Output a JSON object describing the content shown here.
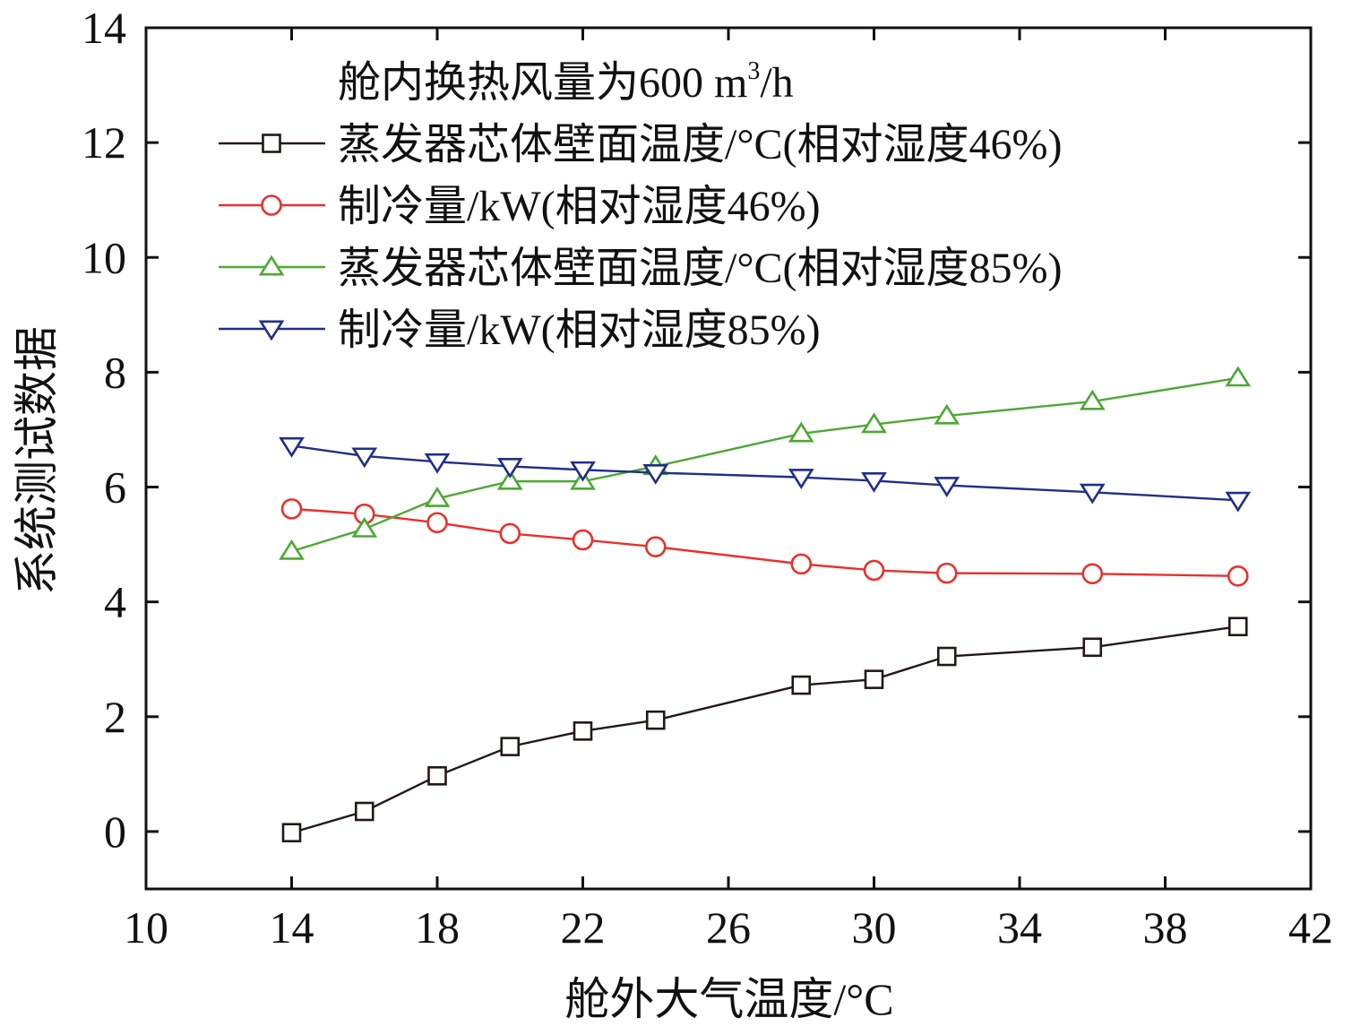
{
  "chart_data": {
    "type": "line",
    "title": "",
    "xlabel": "舱外大气温度/°C",
    "ylabel": "系统测试数据",
    "xlim": [
      10,
      42
    ],
    "ylim": [
      -1,
      14
    ],
    "xticks": [
      10,
      14,
      18,
      22,
      26,
      30,
      34,
      38,
      42
    ],
    "yticks": [
      0,
      2,
      4,
      6,
      8,
      10,
      12,
      14
    ],
    "grid": false,
    "legend": {
      "placement": "top-left",
      "title_main": "舱内换热风量为600 m",
      "title_sup": "3",
      "title_tail": "/h"
    },
    "series": [
      {
        "name": "蒸发器芯体壁面温度/°C(相对湿度46%)",
        "color": "#231815",
        "marker": "square",
        "x": [
          14,
          16,
          18,
          20,
          22,
          24,
          28,
          30,
          32,
          36,
          40
        ],
        "y": [
          -0.02,
          0.35,
          0.97,
          1.48,
          1.75,
          1.94,
          2.55,
          2.65,
          3.05,
          3.21,
          3.57
        ]
      },
      {
        "name": "制冷量/kW(相对湿度46%)",
        "color": "#e8312a",
        "marker": "circle",
        "x": [
          14,
          16,
          18,
          20,
          22,
          24,
          28,
          30,
          32,
          36,
          40
        ],
        "y": [
          5.62,
          5.53,
          5.38,
          5.19,
          5.08,
          4.96,
          4.66,
          4.55,
          4.5,
          4.49,
          4.45
        ]
      },
      {
        "name": "蒸发器芯体壁面温度/°C(相对湿度85%)",
        "color": "#4da833",
        "marker": "triangle-up",
        "x": [
          14,
          16,
          18,
          20,
          22,
          24,
          28,
          30,
          32,
          36,
          40
        ],
        "y": [
          4.88,
          5.27,
          5.8,
          6.1,
          6.1,
          6.36,
          6.93,
          7.09,
          7.24,
          7.49,
          7.9
        ]
      },
      {
        "name": "制冷量/kW(相对湿度85%)",
        "color": "#1f2f87",
        "marker": "triangle-down",
        "x": [
          14,
          16,
          18,
          20,
          22,
          24,
          28,
          30,
          32,
          36,
          40
        ],
        "y": [
          6.72,
          6.54,
          6.44,
          6.36,
          6.3,
          6.25,
          6.17,
          6.11,
          6.03,
          5.91,
          5.77
        ]
      }
    ]
  }
}
